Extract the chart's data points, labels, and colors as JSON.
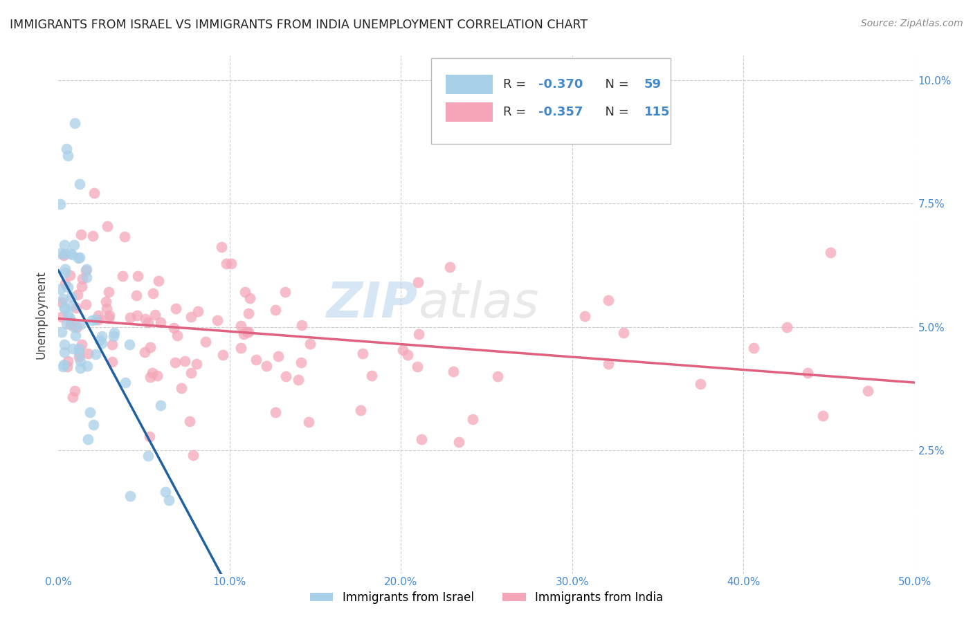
{
  "title": "IMMIGRANTS FROM ISRAEL VS IMMIGRANTS FROM INDIA UNEMPLOYMENT CORRELATION CHART",
  "source": "Source: ZipAtlas.com",
  "ylabel": "Unemployment",
  "xlim": [
    0.0,
    0.5
  ],
  "ylim": [
    0.0,
    0.105
  ],
  "xticks": [
    0.0,
    0.1,
    0.2,
    0.3,
    0.4,
    0.5
  ],
  "xticklabels": [
    "0.0%",
    "10.0%",
    "20.0%",
    "30.0%",
    "40.0%",
    "50.0%"
  ],
  "yticks_right": [
    0.025,
    0.05,
    0.075,
    0.1
  ],
  "yticklabels_right": [
    "2.5%",
    "5.0%",
    "7.5%",
    "10.0%"
  ],
  "legend_r_israel": "-0.370",
  "legend_n_israel": "59",
  "legend_r_india": "-0.357",
  "legend_n_india": "115",
  "color_israel": "#A8D0E8",
  "color_india": "#F4A6B8",
  "line_color_israel": "#2060A0",
  "line_color_india": "#E06080",
  "line_color_dashed": "#AAAAAA",
  "watermark_zip_color": "#A8C8E8",
  "watermark_atlas_color": "#C0C0C0",
  "background_color": "#ffffff",
  "grid_color": "#cccccc",
  "tick_color": "#4488CC",
  "title_color": "#222222",
  "source_color": "#888888",
  "ylabel_color": "#444444"
}
